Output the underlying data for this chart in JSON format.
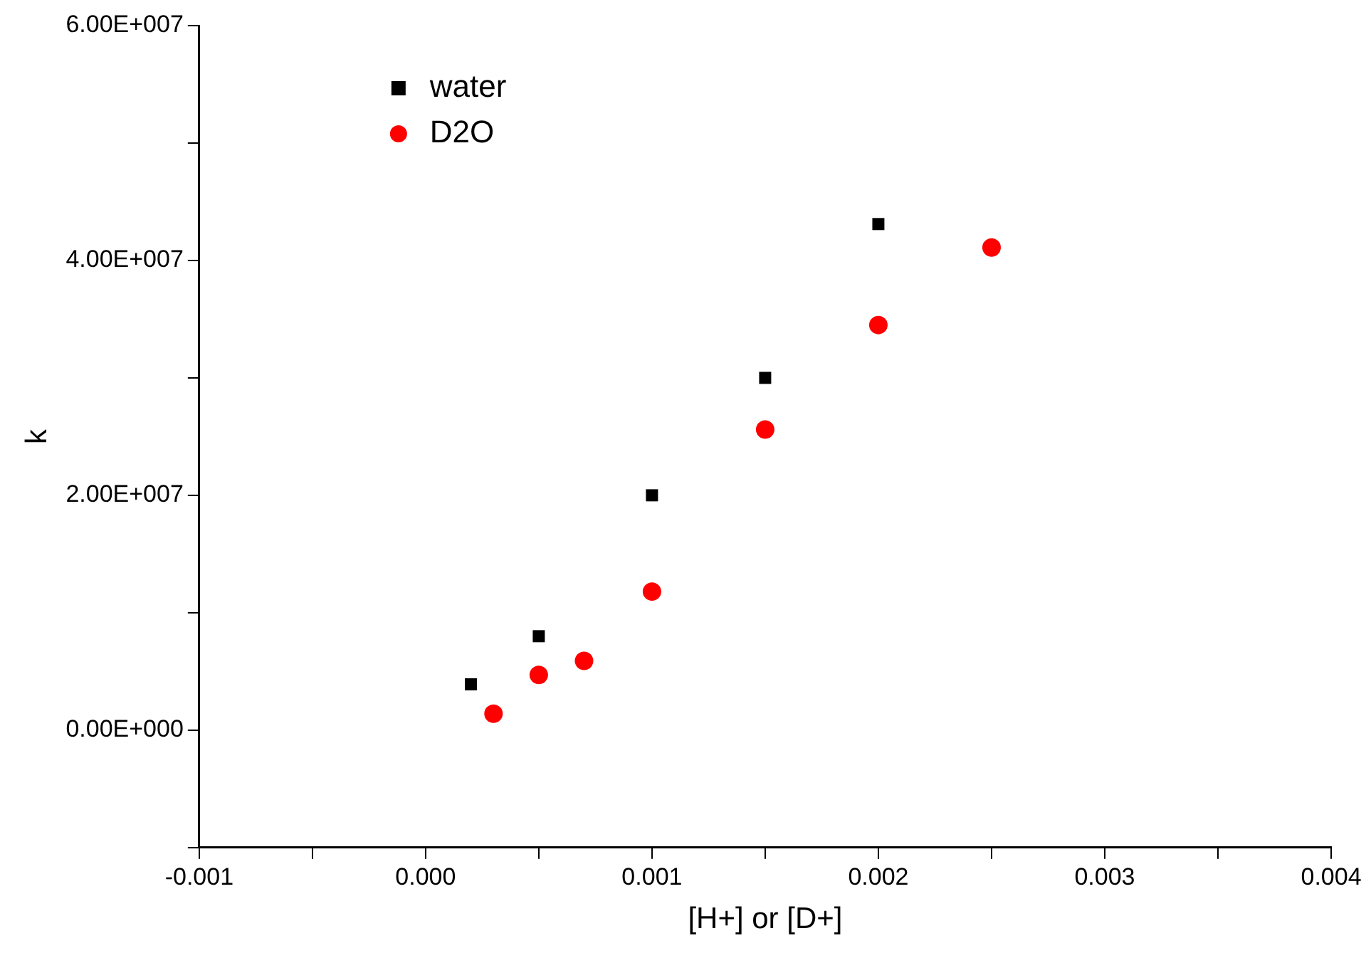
{
  "chart_data": {
    "type": "scatter",
    "xlabel": "[H+] or [D+]",
    "ylabel": "k",
    "xlim": [
      -0.001,
      0.004
    ],
    "xticks": [
      -0.001,
      {
        "value": -0.0005,
        "label": null
      },
      {
        "value": 0,
        "label": "0.000"
      },
      {
        "value": 0.0005,
        "label": null
      },
      0.001,
      {
        "value": 0.0015,
        "label": null
      },
      0.002,
      {
        "value": 0.0025,
        "label": null
      },
      0.003,
      {
        "value": 0.0035,
        "label": null
      },
      0.004
    ],
    "ylim": [
      -10000000,
      60000000
    ],
    "yticks": [
      {
        "value": -10000000,
        "label": null
      },
      {
        "value": 0,
        "label": "0.00E+000"
      },
      {
        "value": 10000000,
        "label": null
      },
      {
        "value": 20000000,
        "label": "2.00E+007"
      },
      {
        "value": 30000000,
        "label": null
      },
      {
        "value": 40000000,
        "label": "4.00E+007"
      },
      {
        "value": 50000000,
        "label": null
      },
      {
        "value": 60000000,
        "label": "6.00E+007"
      }
    ],
    "grid": false,
    "legend": "top left",
    "series": [
      {
        "name": "water",
        "color": "#000000",
        "marker": "square",
        "x": [
          0.0002,
          0.0005,
          0.001,
          0.0015,
          0.002
        ],
        "values": [
          3900000,
          8000000,
          20000000,
          30000000,
          43100000
        ]
      },
      {
        "name": "D2O",
        "color": "#ff0000",
        "marker": "circle",
        "x": [
          0.0003,
          0.0005,
          0.0007,
          0.001,
          0.0015,
          0.002,
          0.0025
        ],
        "values": [
          1400000,
          4700000,
          5900000,
          11800000,
          25600000,
          34500000,
          41100000
        ]
      }
    ]
  }
}
